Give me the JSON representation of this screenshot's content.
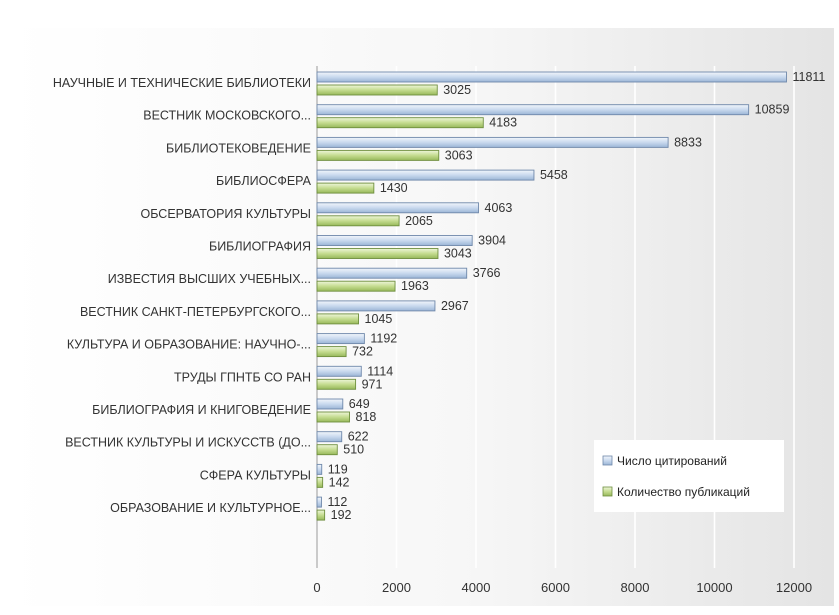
{
  "chart_data": {
    "type": "bar",
    "orientation": "horizontal",
    "title": "",
    "xlabel": "",
    "ylabel": "",
    "xlim": [
      0,
      12000
    ],
    "x_ticks": [
      "0",
      "2000",
      "4000",
      "6000",
      "8000",
      "10000",
      "12000"
    ],
    "grid": "vertical",
    "legend_position": "bottom-right",
    "categories": [
      "НАУЧНЫЕ И ТЕХНИЧЕСКИЕ БИБЛИОТЕКИ",
      "ВЕСТНИК МОСКОВСКОГО...",
      "БИБЛИОТЕКОВЕДЕНИЕ",
      "БИБЛИОСФЕРА",
      "ОБСЕРВАТОРИЯ КУЛЬТУРЫ",
      "БИБЛИОГРАФИЯ",
      "ИЗВЕСТИЯ ВЫСШИХ УЧЕБНЫХ...",
      "ВЕСТНИК САНКТ-ПЕТЕРБУРГСКОГО...",
      "КУЛЬТУРА И ОБРАЗОВАНИЕ: НАУЧНО-...",
      "ТРУДЫ ГПНТБ СО РАН",
      "БИБЛИОГРАФИЯ И КНИГОВЕДЕНИЕ",
      "ВЕСТНИК КУЛЬТУРЫ И ИСКУССТВ (ДО...",
      "СФЕРА КУЛЬТУРЫ",
      "ОБРАЗОВАНИЕ И КУЛЬТУРНОЕ..."
    ],
    "series": [
      {
        "name": "Число цитирований",
        "color": "#c9d9ee",
        "values": [
          11811,
          10859,
          8833,
          5458,
          4063,
          3904,
          3766,
          2967,
          1192,
          1114,
          649,
          622,
          119,
          112
        ],
        "labels": [
          "11811",
          "10859",
          "8833",
          "5458",
          "4063",
          "3904",
          "3766",
          "2967",
          "1192",
          "1114",
          "649",
          "622",
          "119",
          "112"
        ]
      },
      {
        "name": "Количество публикаций",
        "color": "#c5dc90",
        "values": [
          3025,
          4183,
          3063,
          1430,
          2065,
          3043,
          1963,
          1045,
          732,
          971,
          818,
          510,
          142,
          192
        ],
        "labels": [
          "3025",
          "4183",
          "3063",
          "1430",
          "2065",
          "3043",
          "1963",
          "1045",
          "732",
          "971",
          "818",
          "510",
          "142",
          "192"
        ]
      }
    ]
  }
}
